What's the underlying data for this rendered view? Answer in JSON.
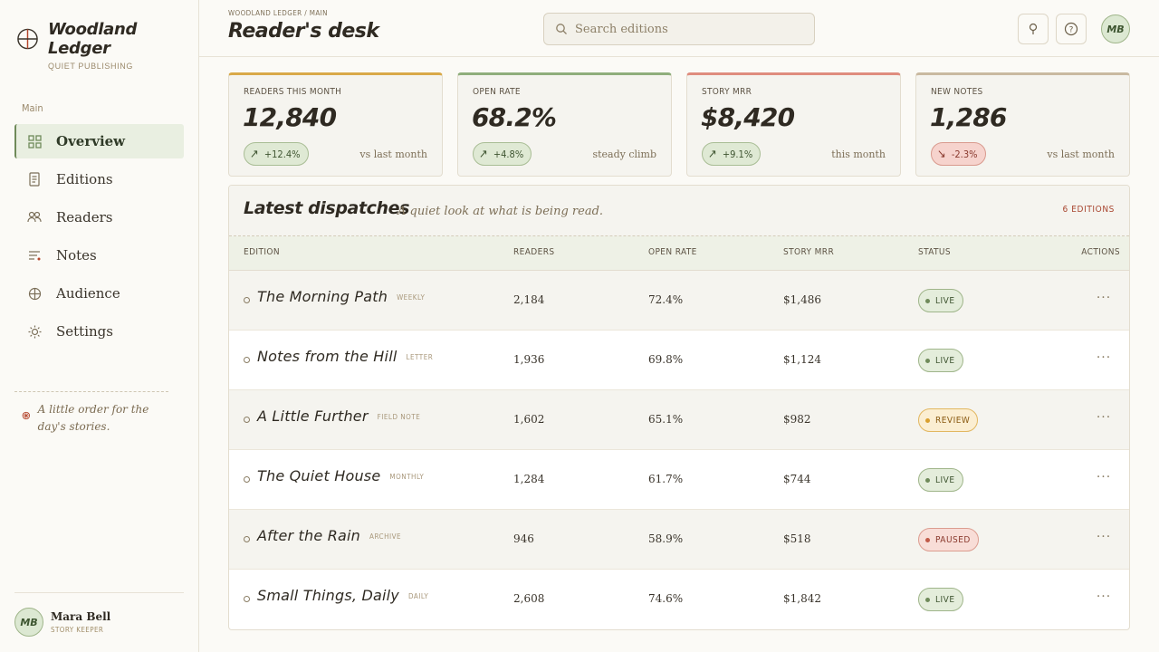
{
  "brand": {
    "title": "Woodland Ledger",
    "subtitle": "QUIET PUBLISHING"
  },
  "sidebar": {
    "section": "Main",
    "items": [
      {
        "label": "Overview",
        "icon": "grid-icon",
        "active": true
      },
      {
        "label": "Editions",
        "icon": "document-icon",
        "active": false
      },
      {
        "label": "Readers",
        "icon": "people-icon",
        "active": false
      },
      {
        "label": "Notes",
        "icon": "list-icon",
        "active": false
      },
      {
        "label": "Audience",
        "icon": "globe-icon",
        "active": false
      },
      {
        "label": "Settings",
        "icon": "sun-gear-icon",
        "active": false
      }
    ],
    "note": "A little order for the day's stories.",
    "user": {
      "initials": "MB",
      "name": "Mara Bell",
      "role": "STORY KEEPER"
    }
  },
  "header": {
    "breadcrumb": "WOODLAND LEDGER / MAIN",
    "title": "Reader's desk",
    "search_placeholder": "Search editions",
    "avatar_initials": "MB"
  },
  "kpis": [
    {
      "label": "READERS THIS MONTH",
      "value": "12,840",
      "delta": "+12.4%",
      "direction": "up",
      "note": "vs last month",
      "accent": "#d9a948"
    },
    {
      "label": "OPEN RATE",
      "value": "68.2%",
      "delta": "+4.8%",
      "direction": "up",
      "note": "steady climb",
      "accent": "#8fae7c"
    },
    {
      "label": "STORY MRR",
      "value": "$8,420",
      "delta": "+9.1%",
      "direction": "up",
      "note": "this month",
      "accent": "#df8c7e"
    },
    {
      "label": "NEW NOTES",
      "value": "1,286",
      "delta": "-2.3%",
      "direction": "down",
      "note": "vs last month",
      "accent": "#c9b9a0"
    }
  ],
  "table": {
    "title": "Latest dispatches",
    "subtitle": "A quiet look at what is being read.",
    "count": "6 EDITIONS",
    "columns": {
      "edition": "EDITION",
      "readers": "READERS",
      "open": "OPEN RATE",
      "mrr": "STORY MRR",
      "status": "STATUS",
      "actions": "ACTIONS"
    },
    "rows": [
      {
        "name": "The Morning Path",
        "tag": "WEEKLY",
        "readers": "2,184",
        "open": "72.4%",
        "mrr": "$1,486",
        "status": "LIVE"
      },
      {
        "name": "Notes from the Hill",
        "tag": "LETTER",
        "readers": "1,936",
        "open": "69.8%",
        "mrr": "$1,124",
        "status": "LIVE"
      },
      {
        "name": "A Little Further",
        "tag": "FIELD NOTE",
        "readers": "1,602",
        "open": "65.1%",
        "mrr": "$982",
        "status": "REVIEW"
      },
      {
        "name": "The Quiet House",
        "tag": "MONTHLY",
        "readers": "1,284",
        "open": "61.7%",
        "mrr": "$744",
        "status": "LIVE"
      },
      {
        "name": "After the Rain",
        "tag": "ARCHIVE",
        "readers": "946",
        "open": "58.9%",
        "mrr": "$518",
        "status": "PAUSED"
      },
      {
        "name": "Small Things, Daily",
        "tag": "DAILY",
        "readers": "2,608",
        "open": "74.6%",
        "mrr": "$1,842",
        "status": "LIVE"
      }
    ],
    "actions_glyph": "···"
  },
  "status_colors": {
    "LIVE": {
      "bg": "#e4eddb",
      "border": "#9fb58a",
      "text": "#3e5430",
      "dot": "#6f8a5a"
    },
    "REVIEW": {
      "bg": "#fbeed2",
      "border": "#e2b760",
      "text": "#8a5a12",
      "dot": "#d9a030"
    },
    "PAUSED": {
      "bg": "#f8ddd7",
      "border": "#dc9d90",
      "text": "#8a3a2e",
      "dot": "#c05a48"
    }
  }
}
